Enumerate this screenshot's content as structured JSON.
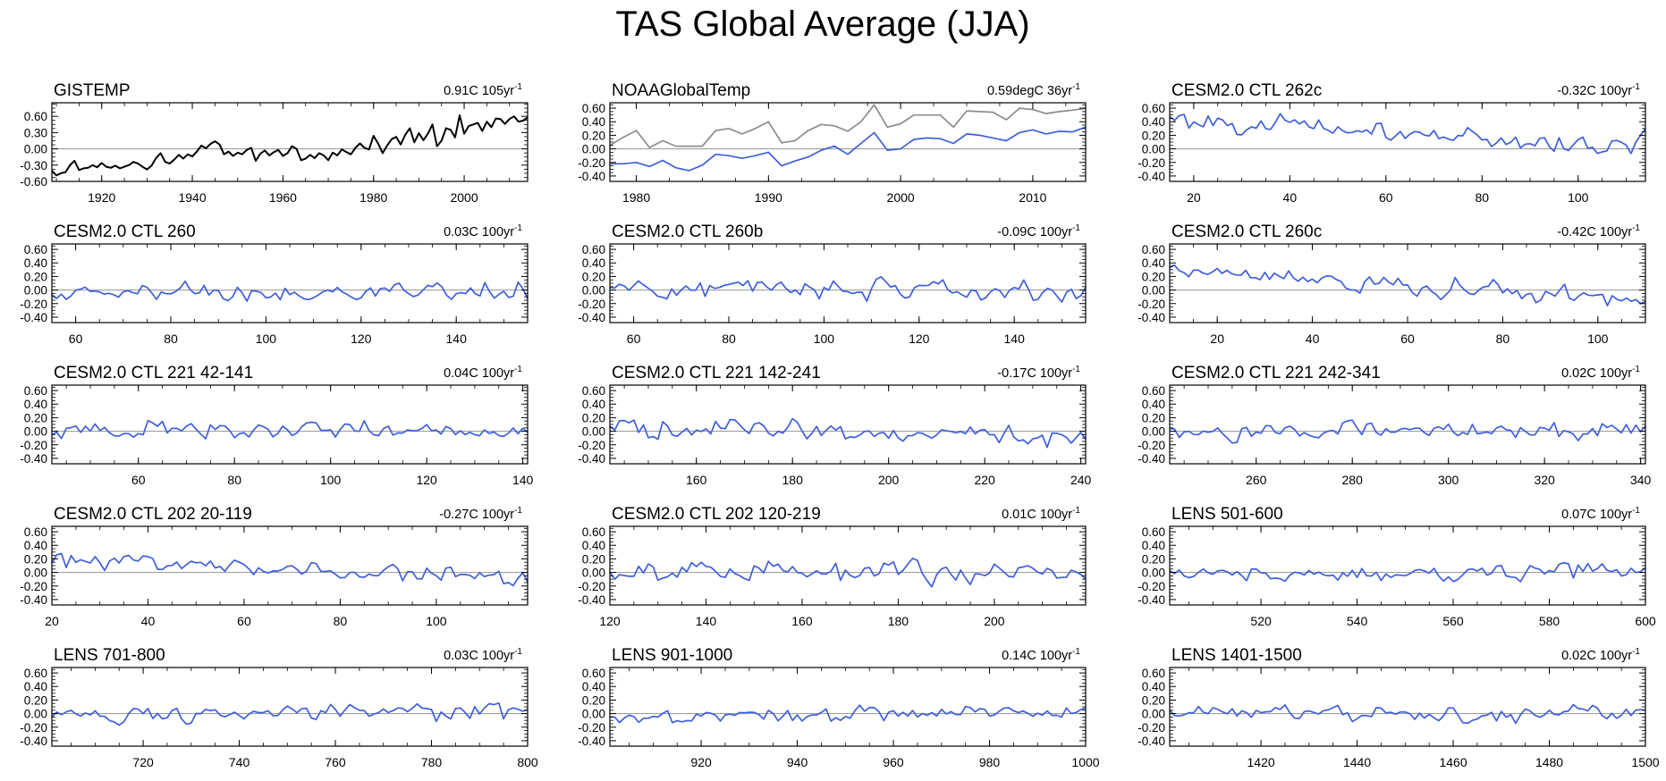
{
  "figure_title": "TAS Global Average (JJA)",
  "colors": {
    "obs": "#000000",
    "obs_alt": "#8c8c8c",
    "model": "#3f5fd9",
    "zero_line": "#a0a0a0"
  },
  "chart_data": [
    {
      "type": "line",
      "title": "GISTEMP",
      "trend_value": "0.91C",
      "trend_unit": "105yr",
      "trend_exp": "-1",
      "xlim": [
        1909,
        2014
      ],
      "ylim": [
        -0.6,
        0.85
      ],
      "yticks": [
        -0.6,
        -0.3,
        0.0,
        0.3,
        0.6
      ],
      "ytick_labels": [
        "-0.60",
        "-0.30",
        "0.00",
        "0.30",
        "0.60"
      ],
      "xticks": [
        1920,
        1940,
        1960,
        1980,
        2000
      ],
      "series": [
        {
          "name": "GISTEMP",
          "color": "#000000",
          "x_start": 1909,
          "x_end": 2014,
          "values": [
            -0.4,
            -0.49,
            -0.45,
            -0.43,
            -0.3,
            -0.22,
            -0.39,
            -0.36,
            -0.35,
            -0.3,
            -0.34,
            -0.26,
            -0.33,
            -0.35,
            -0.31,
            -0.36,
            -0.33,
            -0.3,
            -0.24,
            -0.27,
            -0.33,
            -0.38,
            -0.31,
            -0.17,
            -0.08,
            -0.24,
            -0.27,
            -0.2,
            -0.11,
            -0.18,
            -0.1,
            -0.14,
            -0.05,
            0.06,
            0.01,
            0.09,
            0.14,
            0.08,
            -0.1,
            -0.05,
            -0.13,
            -0.07,
            -0.1,
            -0.02,
            0.02,
            -0.22,
            -0.09,
            -0.03,
            -0.12,
            -0.06,
            -0.02,
            -0.13,
            -0.08,
            0.05,
            0.0,
            -0.21,
            -0.18,
            -0.11,
            -0.17,
            -0.08,
            -0.12,
            -0.21,
            -0.07,
            -0.12,
            -0.01,
            -0.06,
            -0.1,
            0.02,
            0.1,
            0.02,
            -0.01,
            0.24,
            0.1,
            -0.08,
            0.06,
            0.18,
            0.22,
            0.08,
            0.26,
            0.38,
            0.12,
            0.29,
            0.16,
            0.28,
            0.45,
            0.05,
            0.15,
            0.38,
            0.35,
            0.21,
            0.62,
            0.28,
            0.42,
            0.45,
            0.48,
            0.33,
            0.5,
            0.4,
            0.56,
            0.55,
            0.46,
            0.55,
            0.6,
            0.5,
            0.52,
            0.58
          ]
        }
      ]
    },
    {
      "type": "line",
      "title": "NOAAGlobalTemp",
      "trend_value": "0.59degC",
      "trend_unit": "36yr",
      "trend_exp": "-1",
      "xlim": [
        1978,
        2014
      ],
      "ylim": [
        -0.48,
        0.68
      ],
      "yticks": [
        -0.4,
        -0.2,
        0.0,
        0.2,
        0.4,
        0.6
      ],
      "ytick_labels": [
        "-0.40",
        "-0.20",
        "0.00",
        "0.20",
        "0.40",
        "0.60"
      ],
      "xticks": [
        1980,
        1990,
        2000,
        2010
      ],
      "series": [
        {
          "name": "NOAAGlobalTemp (offset)",
          "color": "#8c8c8c",
          "x_start": 1978,
          "x_end": 2014,
          "values": [
            0.05,
            0.17,
            0.27,
            0.02,
            0.12,
            0.04,
            0.04,
            0.04,
            0.27,
            0.3,
            0.22,
            0.3,
            0.4,
            0.09,
            0.12,
            0.27,
            0.36,
            0.34,
            0.26,
            0.4,
            0.65,
            0.32,
            0.37,
            0.5,
            0.5,
            0.5,
            0.32,
            0.56,
            0.55,
            0.54,
            0.43,
            0.6,
            0.58,
            0.52,
            0.55,
            0.57,
            0.6
          ]
        },
        {
          "name": "NOAAGlobalTemp",
          "color": "#3f5fd9",
          "x_start": 1978,
          "x_end": 2014,
          "values": [
            -0.22,
            -0.22,
            -0.2,
            -0.26,
            -0.17,
            -0.28,
            -0.32,
            -0.24,
            -0.08,
            -0.1,
            -0.14,
            -0.1,
            -0.05,
            -0.25,
            -0.18,
            -0.12,
            -0.02,
            0.04,
            -0.08,
            0.08,
            0.24,
            -0.02,
            0.0,
            0.14,
            0.16,
            0.15,
            0.08,
            0.22,
            0.2,
            0.16,
            0.12,
            0.24,
            0.28,
            0.22,
            0.26,
            0.25,
            0.32
          ]
        }
      ]
    },
    {
      "type": "line",
      "title": "CESM2.0 CTL 262c",
      "trend_value": "-0.32C",
      "trend_unit": "100yr",
      "trend_exp": "-1",
      "xlim": [
        15,
        114
      ],
      "ylim": [
        -0.48,
        0.68
      ],
      "yticks": [
        -0.4,
        -0.2,
        0.0,
        0.2,
        0.4,
        0.6
      ],
      "ytick_labels": [
        "-0.40",
        "-0.20",
        "0.00",
        "0.20",
        "0.40",
        "0.60"
      ],
      "xticks": [
        20,
        40,
        60,
        80,
        100
      ],
      "series": [
        {
          "name": "CESM2.0 CTL 262c",
          "color": "#3f5fd9",
          "seed": 101,
          "amp": 0.09,
          "trend": [
            0.45,
            0.0
          ],
          "tail": [
            0.1,
            0.3
          ],
          "x_start": 15,
          "x_end": 114
        }
      ]
    },
    {
      "type": "line",
      "title": "CESM2.0 CTL 260",
      "trend_value": "0.03C",
      "trend_unit": "100yr",
      "trend_exp": "-1",
      "xlim": [
        55,
        155
      ],
      "ylim": [
        -0.48,
        0.68
      ],
      "yticks": [
        -0.4,
        -0.2,
        0.0,
        0.2,
        0.4,
        0.6
      ],
      "ytick_labels": [
        "-0.40",
        "-0.20",
        "0.00",
        "0.20",
        "0.40",
        "0.60"
      ],
      "xticks": [
        60,
        80,
        100,
        120,
        140
      ],
      "series": [
        {
          "name": "CESM2.0 CTL 260",
          "color": "#3f5fd9",
          "seed": 202,
          "amp": 0.1,
          "trend": [
            0.0,
            0.0
          ],
          "x_start": 55,
          "x_end": 155
        }
      ]
    },
    {
      "type": "line",
      "title": "CESM2.0 CTL 260b",
      "trend_value": "-0.09C",
      "trend_unit": "100yr",
      "trend_exp": "-1",
      "xlim": [
        55,
        155
      ],
      "ylim": [
        -0.48,
        0.68
      ],
      "yticks": [
        -0.4,
        -0.2,
        0.0,
        0.2,
        0.4,
        0.6
      ],
      "ytick_labels": [
        "-0.40",
        "-0.20",
        "0.00",
        "0.20",
        "0.40",
        "0.60"
      ],
      "xticks": [
        60,
        80,
        100,
        120,
        140
      ],
      "series": [
        {
          "name": "CESM2.0 CTL 260b",
          "color": "#3f5fd9",
          "seed": 303,
          "amp": 0.09,
          "trend": [
            0.05,
            -0.02
          ],
          "x_start": 55,
          "x_end": 155
        }
      ]
    },
    {
      "type": "line",
      "title": "CESM2.0 CTL 260c",
      "trend_value": "-0.42C",
      "trend_unit": "100yr",
      "trend_exp": "-1",
      "xlim": [
        10,
        110
      ],
      "ylim": [
        -0.48,
        0.68
      ],
      "yticks": [
        -0.4,
        -0.2,
        0.0,
        0.2,
        0.4,
        0.6
      ],
      "ytick_labels": [
        "-0.40",
        "-0.20",
        "0.00",
        "0.20",
        "0.40",
        "0.60"
      ],
      "xticks": [
        20,
        40,
        60,
        80,
        100
      ],
      "series": [
        {
          "name": "CESM2.0 CTL 260c",
          "color": "#3f5fd9",
          "seed": 404,
          "amp": 0.09,
          "trend": [
            0.3,
            -0.18
          ],
          "x_start": 10,
          "x_end": 110
        }
      ]
    },
    {
      "type": "line",
      "title": "CESM2.0 CTL 221 42-141",
      "trend_value": "0.04C",
      "trend_unit": "100yr",
      "trend_exp": "-1",
      "xlim": [
        42,
        141
      ],
      "ylim": [
        -0.48,
        0.68
      ],
      "yticks": [
        -0.4,
        -0.2,
        0.0,
        0.2,
        0.4,
        0.6
      ],
      "ytick_labels": [
        "-0.40",
        "-0.20",
        "0.00",
        "0.20",
        "0.40",
        "0.60"
      ],
      "xticks": [
        60,
        80,
        100,
        120,
        140
      ],
      "series": [
        {
          "name": "CESM2.0 CTL 221 42-141",
          "color": "#3f5fd9",
          "seed": 505,
          "amp": 0.09,
          "trend": [
            0.0,
            0.02
          ],
          "x_start": 42,
          "x_end": 141
        }
      ]
    },
    {
      "type": "line",
      "title": "CESM2.0 CTL 221 142-241",
      "trend_value": "-0.17C",
      "trend_unit": "100yr",
      "trend_exp": "-1",
      "xlim": [
        142,
        241
      ],
      "ylim": [
        -0.48,
        0.68
      ],
      "yticks": [
        -0.4,
        -0.2,
        0.0,
        0.2,
        0.4,
        0.6
      ],
      "ytick_labels": [
        "-0.40",
        "-0.20",
        "0.00",
        "0.20",
        "0.40",
        "0.60"
      ],
      "xticks": [
        160,
        180,
        200,
        220,
        240
      ],
      "series": [
        {
          "name": "CESM2.0 CTL 221 142-241",
          "color": "#3f5fd9",
          "seed": 606,
          "amp": 0.1,
          "trend": [
            0.08,
            -0.08
          ],
          "x_start": 142,
          "x_end": 241
        }
      ]
    },
    {
      "type": "line",
      "title": "CESM2.0 CTL 221 242-341",
      "trend_value": "0.02C",
      "trend_unit": "100yr",
      "trend_exp": "-1",
      "xlim": [
        242,
        341
      ],
      "ylim": [
        -0.48,
        0.68
      ],
      "yticks": [
        -0.4,
        -0.2,
        0.0,
        0.2,
        0.4,
        0.6
      ],
      "ytick_labels": [
        "-0.40",
        "-0.20",
        "0.00",
        "0.20",
        "0.40",
        "0.60"
      ],
      "xticks": [
        260,
        280,
        300,
        320,
        340
      ],
      "series": [
        {
          "name": "CESM2.0 CTL 221 242-341",
          "color": "#3f5fd9",
          "seed": 707,
          "amp": 0.08,
          "trend": [
            0.0,
            0.02
          ],
          "x_start": 242,
          "x_end": 341
        }
      ]
    },
    {
      "type": "line",
      "title": "CESM2.0 CTL 202 20-119",
      "trend_value": "-0.27C",
      "trend_unit": "100yr",
      "trend_exp": "-1",
      "xlim": [
        20,
        119
      ],
      "ylim": [
        -0.48,
        0.68
      ],
      "yticks": [
        -0.4,
        -0.2,
        0.0,
        0.2,
        0.4,
        0.6
      ],
      "ytick_labels": [
        "-0.40",
        "-0.20",
        "0.00",
        "0.20",
        "0.40",
        "0.60"
      ],
      "xticks": [
        20,
        40,
        60,
        80,
        100
      ],
      "series": [
        {
          "name": "CESM2.0 CTL 202 20-119",
          "color": "#3f5fd9",
          "seed": 808,
          "amp": 0.09,
          "trend": [
            0.18,
            -0.1
          ],
          "x_start": 20,
          "x_end": 119
        }
      ]
    },
    {
      "type": "line",
      "title": "CESM2.0 CTL 202 120-219",
      "trend_value": "0.01C",
      "trend_unit": "100yr",
      "trend_exp": "-1",
      "xlim": [
        120,
        219
      ],
      "ylim": [
        -0.48,
        0.68
      ],
      "yticks": [
        -0.4,
        -0.2,
        0.0,
        0.2,
        0.4,
        0.6
      ],
      "ytick_labels": [
        "-0.40",
        "-0.20",
        "0.00",
        "0.20",
        "0.40",
        "0.60"
      ],
      "xticks": [
        120,
        140,
        160,
        180,
        200
      ],
      "series": [
        {
          "name": "CESM2.0 CTL 202 120-219",
          "color": "#3f5fd9",
          "seed": 909,
          "amp": 0.1,
          "trend": [
            0.0,
            0.0
          ],
          "x_start": 120,
          "x_end": 219
        }
      ]
    },
    {
      "type": "line",
      "title": "LENS 501-600",
      "trend_value": "0.07C",
      "trend_unit": "100yr",
      "trend_exp": "-1",
      "xlim": [
        501,
        600
      ],
      "ylim": [
        -0.48,
        0.68
      ],
      "yticks": [
        -0.4,
        -0.2,
        0.0,
        0.2,
        0.4,
        0.6
      ],
      "ytick_labels": [
        "-0.40",
        "-0.20",
        "0.00",
        "0.20",
        "0.40",
        "0.60"
      ],
      "xticks": [
        520,
        540,
        560,
        580,
        600
      ],
      "series": [
        {
          "name": "LENS 501-600",
          "color": "#3f5fd9",
          "seed": 1010,
          "amp": 0.08,
          "trend": [
            -0.02,
            0.04
          ],
          "x_start": 501,
          "x_end": 600
        }
      ]
    },
    {
      "type": "line",
      "title": "LENS 701-800",
      "trend_value": "0.03C",
      "trend_unit": "100yr",
      "trend_exp": "-1",
      "xlim": [
        701,
        800
      ],
      "ylim": [
        -0.48,
        0.68
      ],
      "yticks": [
        -0.4,
        -0.2,
        0.0,
        0.2,
        0.4,
        0.6
      ],
      "ytick_labels": [
        "-0.40",
        "-0.20",
        "0.00",
        "0.20",
        "0.40",
        "0.60"
      ],
      "xticks": [
        720,
        740,
        760,
        780,
        800
      ],
      "series": [
        {
          "name": "LENS 701-800",
          "color": "#3f5fd9",
          "seed": 1111,
          "amp": 0.08,
          "trend": [
            -0.02,
            0.02
          ],
          "x_start": 701,
          "x_end": 800
        }
      ]
    },
    {
      "type": "line",
      "title": "LENS 901-1000",
      "trend_value": "0.14C",
      "trend_unit": "100yr",
      "trend_exp": "-1",
      "xlim": [
        901,
        1000
      ],
      "ylim": [
        -0.48,
        0.68
      ],
      "yticks": [
        -0.4,
        -0.2,
        0.0,
        0.2,
        0.4,
        0.6
      ],
      "ytick_labels": [
        "-0.40",
        "-0.20",
        "0.00",
        "0.20",
        "0.40",
        "0.60"
      ],
      "xticks": [
        920,
        940,
        960,
        980,
        1000
      ],
      "series": [
        {
          "name": "LENS 901-1000",
          "color": "#3f5fd9",
          "seed": 1212,
          "amp": 0.08,
          "trend": [
            -0.06,
            0.06
          ],
          "x_start": 901,
          "x_end": 1000
        }
      ]
    },
    {
      "type": "line",
      "title": "LENS 1401-1500",
      "trend_value": "0.02C",
      "trend_unit": "100yr",
      "trend_exp": "-1",
      "xlim": [
        1401,
        1500
      ],
      "ylim": [
        -0.48,
        0.68
      ],
      "yticks": [
        -0.4,
        -0.2,
        0.0,
        0.2,
        0.4,
        0.6
      ],
      "ytick_labels": [
        "-0.40",
        "-0.20",
        "0.00",
        "0.20",
        "0.40",
        "0.60"
      ],
      "xticks": [
        1420,
        1440,
        1460,
        1480,
        1500
      ],
      "series": [
        {
          "name": "LENS 1401-1500",
          "color": "#3f5fd9",
          "seed": 1313,
          "amp": 0.08,
          "trend": [
            0.0,
            0.02
          ],
          "x_start": 1401,
          "x_end": 1500
        }
      ]
    }
  ]
}
